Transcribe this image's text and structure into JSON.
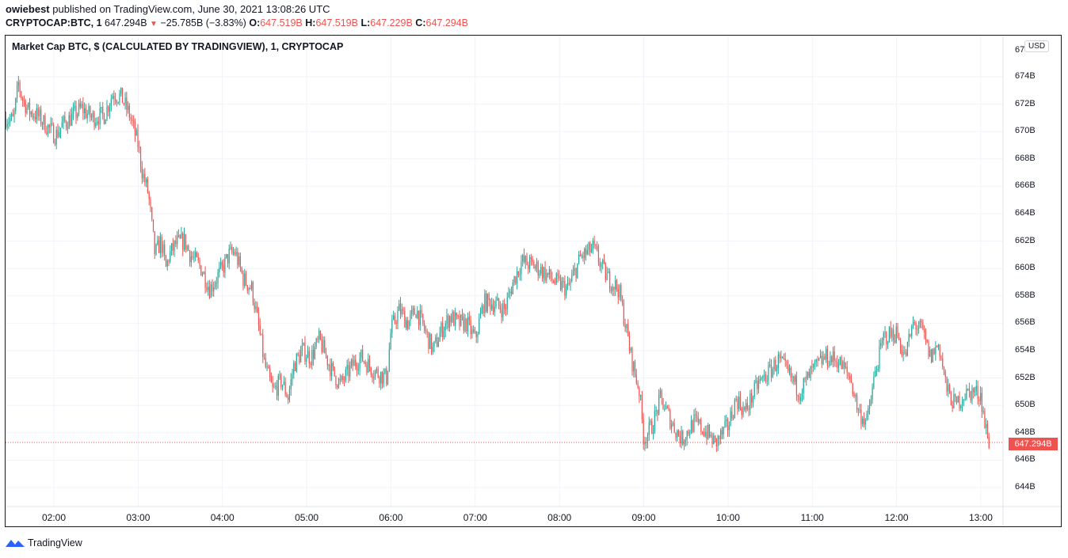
{
  "header": {
    "author": "owiebest",
    "published_text": "published on TradingView.com, June 30, 2021 13:08:26 UTC",
    "symbol": "CRYPTOCAP:BTC, 1",
    "last": "647.294B",
    "change_arrow": "▼",
    "change": "−25.785B (−3.83%)",
    "o_label": "O:",
    "o_value": "647.519B",
    "h_label": "H:",
    "h_value": "647.519B",
    "l_label": "L:",
    "l_value": "647.229B",
    "c_label": "C:",
    "c_value": "647.294B"
  },
  "legend": {
    "title": "Market Cap BTC, $ (CALCULATED BY TRADINGVIEW), 1, CRYPTOCAP"
  },
  "price_axis": {
    "currency_badge": "USD",
    "top_partial_label": "67",
    "last_price_label": "647.294B"
  },
  "brand": {
    "name": "TradingView"
  },
  "colors": {
    "up": "#26a69a",
    "down": "#ef5350",
    "grid": "#f0f3fa",
    "last_line": "#ef5350",
    "brand_blue": "#2962ff"
  },
  "chart_data": {
    "type": "candlestick",
    "title": "Market Cap BTC, $ (CALCULATED BY TRADINGVIEW), 1, CRYPTOCAP",
    "xlabel": "",
    "ylabel": "USD",
    "interval": "1 minute",
    "x_ticks": [
      "02:00",
      "03:00",
      "04:00",
      "05:00",
      "06:00",
      "07:00",
      "08:00",
      "09:00",
      "10:00",
      "11:00",
      "12:00",
      "13:00"
    ],
    "y_ticks": [
      "674B",
      "672B",
      "670B",
      "668B",
      "666B",
      "664B",
      "662B",
      "660B",
      "658B",
      "656B",
      "654B",
      "652B",
      "650B",
      "648B",
      "646B",
      "644B"
    ],
    "y_tick_values": [
      674,
      672,
      670,
      668,
      666,
      664,
      662,
      660,
      658,
      656,
      654,
      652,
      650,
      648,
      646,
      644
    ],
    "ylim": [
      643.2,
      675.5
    ],
    "xlim_hours": [
      1.427,
      13.4
    ],
    "grid": true,
    "last_price": 647.294,
    "last": {
      "open": 647.519,
      "high": 647.519,
      "low": 647.229,
      "close": 647.294
    },
    "change": -25.785,
    "change_pct": -3.83,
    "price_path_hours": [
      1.43,
      1.52,
      1.58,
      1.62,
      1.7,
      1.8,
      1.9,
      2.02,
      2.1,
      2.2,
      2.33,
      2.45,
      2.6,
      2.7,
      2.8,
      2.9,
      3.0,
      3.05,
      3.12,
      3.2,
      3.27,
      3.33,
      3.37,
      3.45,
      3.55,
      3.62,
      3.75,
      3.85,
      3.95,
      4.0,
      4.08,
      4.15,
      4.25,
      4.35,
      4.45,
      4.5,
      4.6,
      4.7,
      4.78,
      4.85,
      4.95,
      5.05,
      5.15,
      5.3,
      5.4,
      5.55,
      5.65,
      5.8,
      5.95,
      6.0,
      6.1,
      6.2,
      6.3,
      6.4,
      6.5,
      6.6,
      6.7,
      6.8,
      6.9,
      7.0,
      7.1,
      7.2,
      7.35,
      7.45,
      7.55,
      7.7,
      7.8,
      7.95,
      8.1,
      8.25,
      8.4,
      8.55,
      8.62,
      8.7,
      8.78,
      8.85,
      8.95,
      9.0,
      9.1,
      9.2,
      9.35,
      9.45,
      9.6,
      9.75,
      9.85,
      10.0,
      10.1,
      10.2,
      10.35,
      10.5,
      10.6,
      10.75,
      10.85,
      11.0,
      11.15,
      11.3,
      11.45,
      11.55,
      11.65,
      11.75,
      11.85,
      12.0,
      12.1,
      12.2,
      12.3,
      12.4,
      12.5,
      12.6,
      12.7,
      12.8,
      12.9,
      13.0,
      13.05,
      13.1
    ],
    "price_path_close": [
      671.0,
      670.8,
      673.5,
      672.5,
      671.5,
      671.2,
      670.5,
      669.7,
      670.5,
      671.0,
      671.7,
      671.0,
      671.2,
      672.8,
      672.5,
      671.2,
      669.0,
      667.0,
      665.5,
      661.0,
      662.0,
      660.0,
      661.0,
      661.8,
      662.0,
      661.0,
      660.0,
      658.5,
      659.5,
      660.0,
      661.0,
      661.2,
      659.2,
      658.5,
      655.0,
      653.0,
      651.0,
      651.8,
      650.6,
      653.0,
      654.0,
      653.5,
      654.8,
      652.5,
      651.5,
      653.0,
      653.5,
      652.5,
      652.0,
      655.5,
      657.0,
      656.0,
      657.0,
      655.5,
      654.0,
      655.5,
      656.5,
      656.0,
      656.0,
      654.8,
      657.5,
      657.5,
      657.0,
      659.0,
      660.5,
      660.2,
      659.8,
      659.0,
      658.5,
      660.8,
      661.5,
      659.5,
      659.0,
      658.5,
      656.0,
      653.5,
      651.0,
      647.5,
      648.5,
      650.5,
      648.5,
      647.5,
      648.8,
      648.0,
      647.2,
      648.5,
      650.5,
      649.5,
      651.5,
      652.5,
      653.3,
      652.0,
      651.0,
      652.5,
      653.5,
      653.3,
      652.0,
      649.5,
      648.8,
      652.5,
      655.0,
      655.3,
      653.5,
      656.0,
      655.5,
      653.5,
      654.5,
      651.0,
      650.0,
      650.8,
      651.0,
      650.8,
      648.5,
      647.3
    ]
  }
}
